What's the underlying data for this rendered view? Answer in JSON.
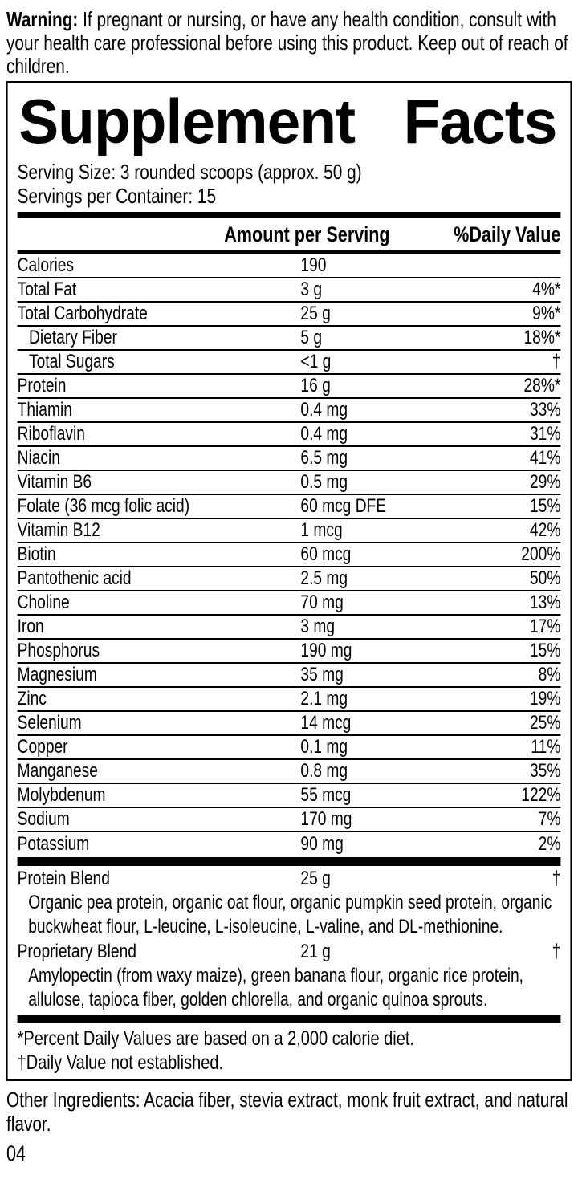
{
  "warning": {
    "label": "Warning:",
    "text": " If pregnant or nursing, or have any health condition, consult with your health care professional before using this product. Keep out of reach of children."
  },
  "panel": {
    "title_word1": "Supplement",
    "title_word2": "Facts",
    "serving_size": "Serving Size: 3 rounded scoops (approx. 50 g)",
    "servings_per_container": "Servings per Container: 15",
    "columns": {
      "amount": "Amount per Serving",
      "dv": "%Daily Value"
    },
    "rows": [
      {
        "name": "Calories",
        "amount": "190",
        "dv": "",
        "indent": false
      },
      {
        "name": "Total Fat",
        "amount": "3 g",
        "dv": "4%*",
        "indent": false
      },
      {
        "name": "Total Carbohydrate",
        "amount": "25 g",
        "dv": "9%*",
        "indent": false
      },
      {
        "name": "Dietary Fiber",
        "amount": "5 g",
        "dv": "18%*",
        "indent": true
      },
      {
        "name": "Total Sugars",
        "amount": "<1 g",
        "dv": "†",
        "indent": true
      },
      {
        "name": "Protein",
        "amount": "16 g",
        "dv": "28%*",
        "indent": false
      },
      {
        "name": "Thiamin",
        "amount": "0.4 mg",
        "dv": "33%",
        "indent": false
      },
      {
        "name": "Riboflavin",
        "amount": "0.4 mg",
        "dv": "31%",
        "indent": false
      },
      {
        "name": "Niacin",
        "amount": "6.5 mg",
        "dv": "41%",
        "indent": false
      },
      {
        "name": "Vitamin B6",
        "amount": "0.5 mg",
        "dv": "29%",
        "indent": false
      },
      {
        "name": "Folate (36 mcg folic acid)",
        "amount": "60 mcg DFE",
        "dv": "15%",
        "indent": false
      },
      {
        "name": "Vitamin B12",
        "amount": "1 mcg",
        "dv": "42%",
        "indent": false
      },
      {
        "name": "Biotin",
        "amount": "60 mcg",
        "dv": "200%",
        "indent": false
      },
      {
        "name": "Pantothenic acid",
        "amount": "2.5 mg",
        "dv": "50%",
        "indent": false
      },
      {
        "name": "Choline",
        "amount": "70 mg",
        "dv": "13%",
        "indent": false
      },
      {
        "name": "Iron",
        "amount": "3 mg",
        "dv": "17%",
        "indent": false
      },
      {
        "name": "Phosphorus",
        "amount": "190 mg",
        "dv": "15%",
        "indent": false
      },
      {
        "name": "Magnesium",
        "amount": "35 mg",
        "dv": "8%",
        "indent": false
      },
      {
        "name": "Zinc",
        "amount": "2.1 mg",
        "dv": "19%",
        "indent": false
      },
      {
        "name": "Selenium",
        "amount": "14 mcg",
        "dv": "25%",
        "indent": false
      },
      {
        "name": "Copper",
        "amount": "0.1 mg",
        "dv": "11%",
        "indent": false
      },
      {
        "name": "Manganese",
        "amount": "0.8 mg",
        "dv": "35%",
        "indent": false
      },
      {
        "name": "Molybdenum",
        "amount": "55 mcg",
        "dv": "122%",
        "indent": false
      },
      {
        "name": "Sodium",
        "amount": "170 mg",
        "dv": "7%",
        "indent": false
      },
      {
        "name": "Potassium",
        "amount": "90 mg",
        "dv": "2%",
        "indent": false
      }
    ],
    "blends": [
      {
        "name": "Protein Blend",
        "amount": "25 g",
        "dv": "†",
        "description": "Organic pea protein, organic oat flour, organic pumpkin seed protein, organic buckwheat flour, L-leucine, L-isoleucine, L-valine, and DL-methionine."
      },
      {
        "name": "Proprietary Blend",
        "amount": "21 g",
        "dv": "†",
        "description": "Amylopectin (from waxy maize), green banana flour, organic rice protein, allulose, tapioca fiber, golden chlorella, and organic quinoa sprouts."
      }
    ],
    "footnotes": [
      "*Percent Daily Values are based on a 2,000 calorie diet.",
      "†Daily Value not established."
    ]
  },
  "other_ingredients": "Other Ingredients: Acacia fiber, stevia extract, monk fruit extract, and natural flavor.",
  "page_number": "04",
  "colors": {
    "text": "#000000",
    "background": "#ffffff"
  }
}
